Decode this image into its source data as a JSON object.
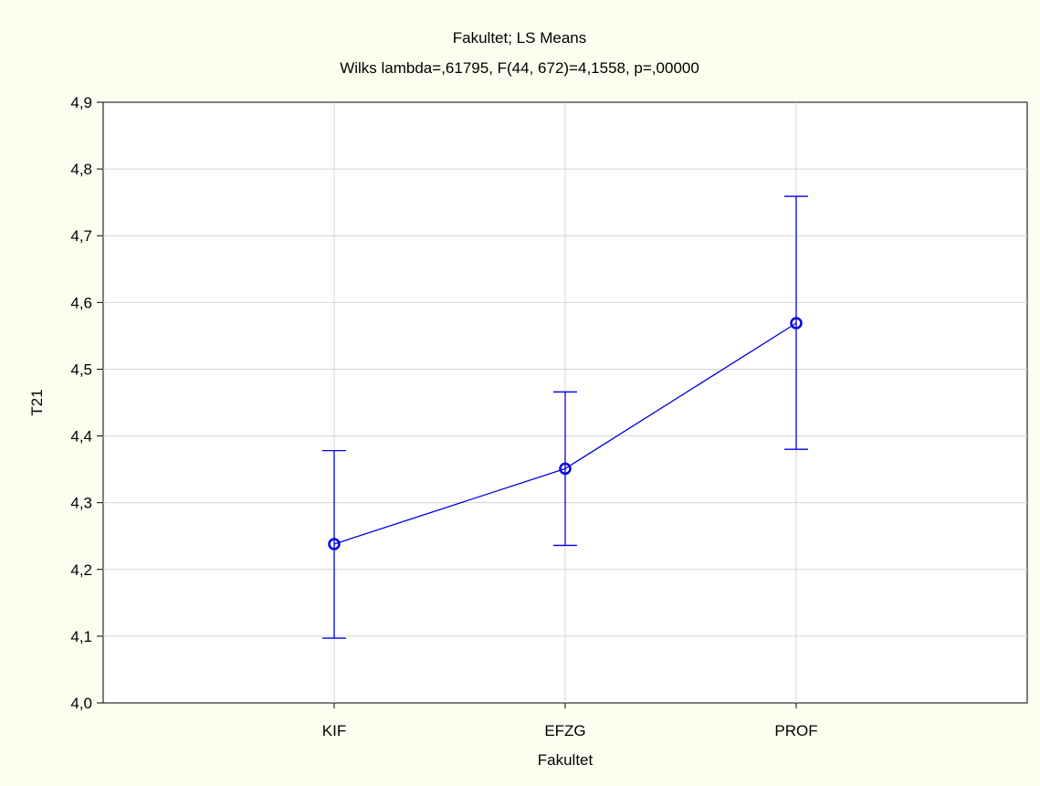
{
  "chart_data": {
    "type": "line",
    "title": "Fakultet; LS Means",
    "subtitle": "Wilks lambda=,61795, F(44, 672)=4,1558, p=,00000",
    "xlabel": "Fakultet",
    "ylabel": "T21",
    "categories": [
      "KIF",
      "EFZG",
      "PROF"
    ],
    "series": [
      {
        "values": [
          4.238,
          4.351,
          4.569
        ],
        "lower": [
          4.097,
          4.236,
          4.38
        ],
        "upper": [
          4.378,
          4.466,
          4.759
        ]
      }
    ],
    "ylim": [
      4.0,
      4.9
    ],
    "yticks": [
      "4,0",
      "4,1",
      "4,2",
      "4,3",
      "4,4",
      "4,5",
      "4,6",
      "4,7",
      "4,8",
      "4,9"
    ],
    "grid": true,
    "legend": "none",
    "colors": {
      "series": "#0000e0",
      "grid": "#d4d4d4",
      "background": "#fefef0",
      "plot_background": "#ffffff"
    }
  }
}
